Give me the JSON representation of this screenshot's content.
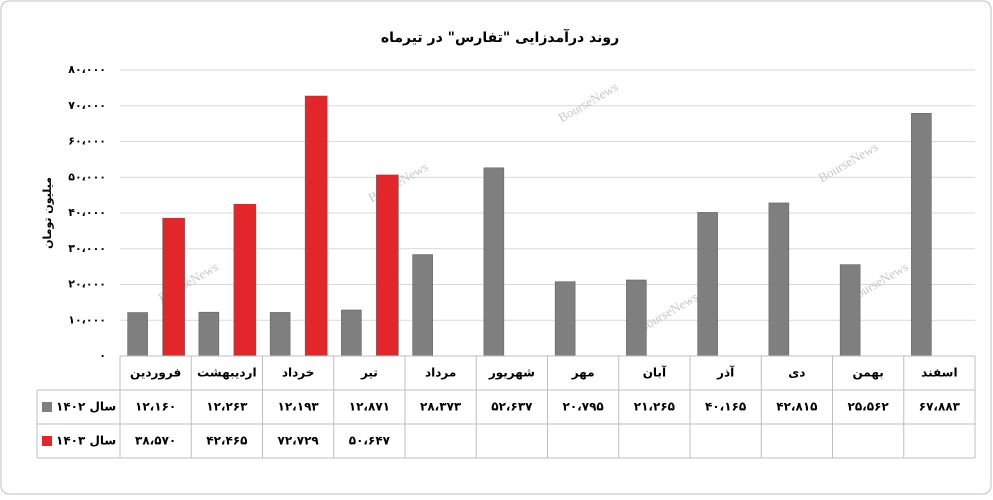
{
  "chart_data": {
    "type": "bar",
    "title": "روند درآمدزایی \"تفارس\" در تیرماه",
    "y_label": "میلیون تومان",
    "watermark": "BourseNews",
    "categories": [
      "فروردین",
      "اردیبهشت",
      "خرداد",
      "تیر",
      "مرداد",
      "شهریور",
      "مهر",
      "آبان",
      "آذر",
      "دی",
      "بهمن",
      "اسفند"
    ],
    "series": [
      {
        "name": "سال ۱۴۰۲",
        "color": "#7f7f7f",
        "values": [
          12160,
          12263,
          12193,
          12871,
          28373,
          52637,
          20795,
          21265,
          40165,
          42815,
          25562,
          67883
        ],
        "value_labels": [
          "۱۲،۱۶۰",
          "۱۲،۲۶۳",
          "۱۲،۱۹۳",
          "۱۲،۸۷۱",
          "۲۸،۳۷۳",
          "۵۲،۶۳۷",
          "۲۰،۷۹۵",
          "۲۱،۲۶۵",
          "۴۰،۱۶۵",
          "۴۲،۸۱۵",
          "۲۵،۵۶۲",
          "۶۷،۸۸۳"
        ]
      },
      {
        "name": "سال ۱۴۰۳",
        "color": "#e3262a",
        "values": [
          38570,
          42465,
          72729,
          50647,
          null,
          null,
          null,
          null,
          null,
          null,
          null,
          null
        ],
        "value_labels": [
          "۳۸،۵۷۰",
          "۴۲،۴۶۵",
          "۷۲،۷۲۹",
          "۵۰،۶۴۷",
          null,
          null,
          null,
          null,
          null,
          null,
          null,
          null
        ]
      }
    ],
    "ylim": [
      0,
      80000
    ],
    "yticks": [
      {
        "value": 0,
        "label": "۰"
      },
      {
        "value": 10000,
        "label": "۱۰،۰۰۰"
      },
      {
        "value": 20000,
        "label": "۲۰،۰۰۰"
      },
      {
        "value": 30000,
        "label": "۳۰،۰۰۰"
      },
      {
        "value": 40000,
        "label": "۴۰،۰۰۰"
      },
      {
        "value": 50000,
        "label": "۵۰،۰۰۰"
      },
      {
        "value": 60000,
        "label": "۶۰،۰۰۰"
      },
      {
        "value": 70000,
        "label": "۷۰،۰۰۰"
      },
      {
        "value": 80000,
        "label": "۸۰،۰۰۰"
      }
    ],
    "grid": true
  }
}
